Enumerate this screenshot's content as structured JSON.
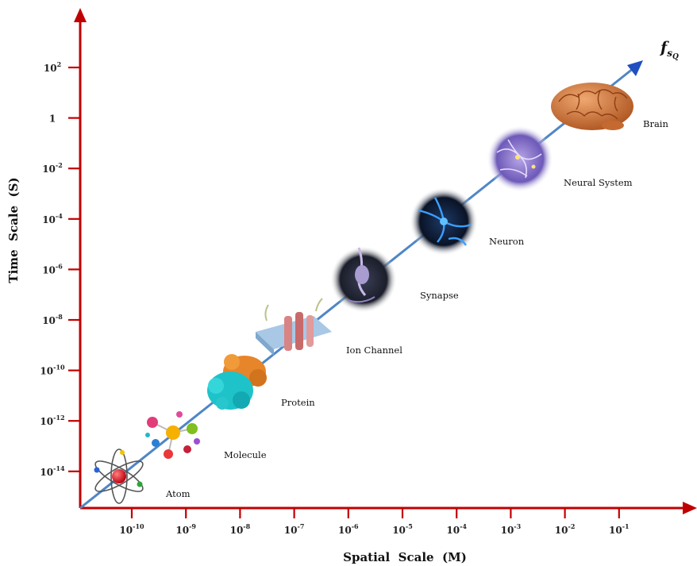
{
  "axes": {
    "x_title": "Spatial  Scale  (M)",
    "y_title": "Time  Scale  (S)",
    "x_ticks": [
      {
        "base": "10",
        "exp": "-10"
      },
      {
        "base": "10",
        "exp": "-9"
      },
      {
        "base": "10",
        "exp": "-8"
      },
      {
        "base": "10",
        "exp": "-7"
      },
      {
        "base": "10",
        "exp": "-6"
      },
      {
        "base": "10",
        "exp": "-5"
      },
      {
        "base": "10",
        "exp": "-4"
      },
      {
        "base": "10",
        "exp": "-3"
      },
      {
        "base": "10",
        "exp": "-2"
      },
      {
        "base": "10",
        "exp": "-1"
      }
    ],
    "y_ticks": [
      {
        "base": "10",
        "exp": "2"
      },
      {
        "base": "1",
        "exp": ""
      },
      {
        "base": "10",
        "exp": "-2"
      },
      {
        "base": "10",
        "exp": "-4"
      },
      {
        "base": "10",
        "exp": "-6"
      },
      {
        "base": "10",
        "exp": "-8"
      },
      {
        "base": "10",
        "exp": "-10"
      },
      {
        "base": "10",
        "exp": "-12"
      },
      {
        "base": "10",
        "exp": "-14"
      }
    ],
    "axis_color": "#c00000",
    "diagonal_color": "#4f86c6",
    "diagonal_arrow_color": "#1f4fc0"
  },
  "diagonal_label": {
    "main": "f",
    "sub": "s",
    "subsub": "Q"
  },
  "stages": [
    {
      "key": "atom",
      "label": "Atom"
    },
    {
      "key": "molecule",
      "label": "Molecule"
    },
    {
      "key": "protein",
      "label": "Protein"
    },
    {
      "key": "ion-channel",
      "label": "Ion Channel"
    },
    {
      "key": "synapse",
      "label": "Synapse"
    },
    {
      "key": "neuron",
      "label": "Neuron"
    },
    {
      "key": "neural-system",
      "label": "Neural System"
    },
    {
      "key": "brain",
      "label": "Brain"
    }
  ]
}
